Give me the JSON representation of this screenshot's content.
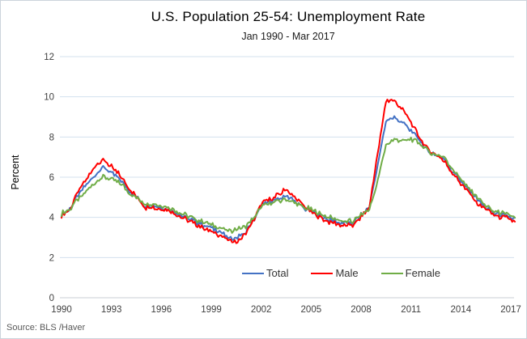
{
  "chart_data": {
    "type": "line",
    "title": "U.S. Population 25-54: Unemployment Rate",
    "subtitle": "Jan 1990 - Mar 2017",
    "ylabel": "Percent",
    "xlabel": "",
    "source": "Source: BLS /Haver",
    "xlim": [
      1990,
      2017.25
    ],
    "ylim": [
      0,
      12
    ],
    "yticks": [
      0,
      2,
      4,
      6,
      8,
      10,
      12
    ],
    "xticks": [
      1990,
      1993,
      1996,
      1999,
      2002,
      2005,
      2008,
      2011,
      2014,
      2017
    ],
    "grid": "horizontal-only",
    "legend_position": "inside-bottom-center",
    "colors": {
      "grid": "#d3e0ee",
      "axis_zero_line": "#c8cfd6",
      "tick_text": "#404040",
      "title_text": "#000000",
      "source_text": "#595959",
      "chart_border": "#ccd3db",
      "background": "#ffffff"
    },
    "x_anchors": [
      1990,
      1990.5,
      1991,
      1991.5,
      1992,
      1992.5,
      1993,
      1993.5,
      1994,
      1994.5,
      1995,
      1995.5,
      1996,
      1996.5,
      1997,
      1997.5,
      1998,
      1998.5,
      1999,
      1999.5,
      2000,
      2000.5,
      2001,
      2001.5,
      2002,
      2002.5,
      2003,
      2003.5,
      2004,
      2004.5,
      2005,
      2005.5,
      2006,
      2006.5,
      2007,
      2007.5,
      2008,
      2008.5,
      2009,
      2009.5,
      2010,
      2010.5,
      2011,
      2011.5,
      2012,
      2012.5,
      2013,
      2013.5,
      2014,
      2014.5,
      2015,
      2015.5,
      2016,
      2016.5,
      2017,
      2017.25
    ],
    "series": [
      {
        "name": "Total",
        "color": "#4472C4",
        "values": [
          4.2,
          4.4,
          5.1,
          5.6,
          6.1,
          6.5,
          6.2,
          5.9,
          5.4,
          5.0,
          4.6,
          4.6,
          4.5,
          4.4,
          4.2,
          4.0,
          3.8,
          3.6,
          3.5,
          3.3,
          3.0,
          3.0,
          3.2,
          3.8,
          4.6,
          4.8,
          4.9,
          5.1,
          4.8,
          4.5,
          4.3,
          4.1,
          3.9,
          3.8,
          3.7,
          3.7,
          4.1,
          4.5,
          6.6,
          8.8,
          9.0,
          8.7,
          8.3,
          7.9,
          7.3,
          7.1,
          6.9,
          6.3,
          5.8,
          5.3,
          4.9,
          4.5,
          4.2,
          4.1,
          4.0,
          3.9
        ]
      },
      {
        "name": "Male",
        "color": "#FF0000",
        "values": [
          4.1,
          4.4,
          5.3,
          5.9,
          6.5,
          6.9,
          6.5,
          6.1,
          5.5,
          5.0,
          4.5,
          4.5,
          4.4,
          4.3,
          4.1,
          3.9,
          3.7,
          3.5,
          3.3,
          3.1,
          2.9,
          2.8,
          3.1,
          3.8,
          4.7,
          4.9,
          5.1,
          5.4,
          5.0,
          4.6,
          4.3,
          4.0,
          3.8,
          3.7,
          3.6,
          3.6,
          4.0,
          4.5,
          7.2,
          9.8,
          9.8,
          9.4,
          8.7,
          8.0,
          7.4,
          7.1,
          6.8,
          6.2,
          5.7,
          5.2,
          4.7,
          4.4,
          4.1,
          4.0,
          3.9,
          3.8
        ]
      },
      {
        "name": "Female",
        "color": "#70AD47",
        "values": [
          4.2,
          4.4,
          4.9,
          5.3,
          5.7,
          6.0,
          5.9,
          5.7,
          5.3,
          5.0,
          4.7,
          4.7,
          4.6,
          4.5,
          4.3,
          4.1,
          3.9,
          3.8,
          3.6,
          3.5,
          3.3,
          3.4,
          3.5,
          3.9,
          4.5,
          4.7,
          4.8,
          4.9,
          4.7,
          4.5,
          4.4,
          4.2,
          4.0,
          3.9,
          3.8,
          3.8,
          4.1,
          4.4,
          5.8,
          7.6,
          7.9,
          7.8,
          7.9,
          7.7,
          7.3,
          7.1,
          7.0,
          6.4,
          5.9,
          5.4,
          5.0,
          4.6,
          4.3,
          4.2,
          4.1,
          4.0
        ]
      }
    ],
    "render_hints": {
      "sample_step_years": 0.0833,
      "noise_shared": 0.09,
      "noise_own": 0.06,
      "line_width": 2
    }
  }
}
